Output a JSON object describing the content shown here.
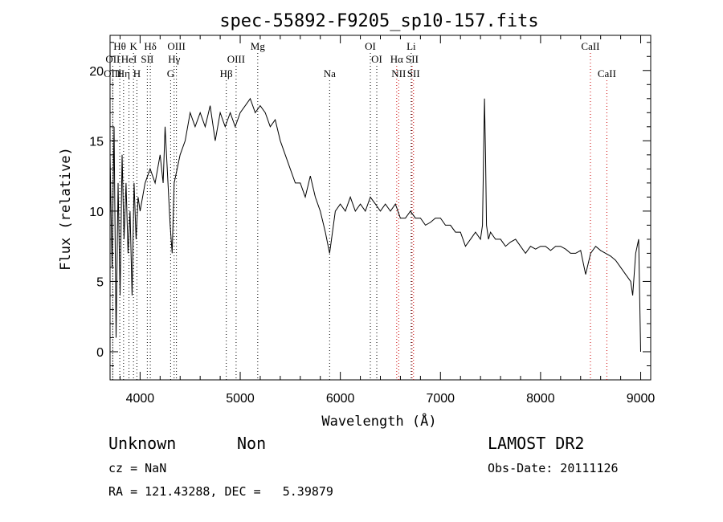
{
  "title": "spec-55892-F9205_sp10-157.fits",
  "chart_data": {
    "type": "line",
    "title": "spec-55892-F9205_sp10-157.fits",
    "xlabel": "Wavelength (Å)",
    "ylabel": "Flux (relative)",
    "xlim": [
      3700,
      9100
    ],
    "ylim": [
      -2,
      22.5
    ],
    "xticks": [
      4000,
      5000,
      6000,
      7000,
      8000,
      9000
    ],
    "yticks": [
      0,
      5,
      10,
      15,
      20
    ],
    "ytick_labels": [
      "0",
      "5",
      "10",
      "15",
      "20"
    ],
    "grid": false,
    "line_color": "#000000",
    "series": [
      {
        "x": [
          3700,
          3720,
          3740,
          3760,
          3780,
          3800,
          3820,
          3840,
          3860,
          3880,
          3900,
          3920,
          3940,
          3960,
          3980,
          4000,
          4050,
          4100,
          4150,
          4200,
          4230,
          4250,
          4300,
          4320,
          4340,
          4400,
          4450,
          4500,
          4550,
          4600,
          4650,
          4700,
          4750,
          4800,
          4850,
          4900,
          4950,
          5000,
          5050,
          5100,
          5150,
          5200,
          5250,
          5300,
          5350,
          5400,
          5450,
          5500,
          5550,
          5600,
          5650,
          5700,
          5750,
          5800,
          5850,
          5893,
          5950,
          6000,
          6050,
          6100,
          6150,
          6200,
          6250,
          6300,
          6350,
          6400,
          6450,
          6500,
          6550,
          6600,
          6650,
          6700,
          6750,
          6800,
          6850,
          6900,
          6950,
          7000,
          7050,
          7100,
          7150,
          7200,
          7250,
          7300,
          7350,
          7400,
          7420,
          7440,
          7450,
          7460,
          7480,
          7500,
          7550,
          7600,
          7650,
          7700,
          7750,
          7800,
          7850,
          7900,
          7950,
          8000,
          8050,
          8100,
          8150,
          8200,
          8250,
          8300,
          8350,
          8400,
          8450,
          8500,
          8550,
          8600,
          8650,
          8700,
          8750,
          8800,
          8850,
          8900,
          8920,
          8950,
          8980,
          9000
        ],
        "y": [
          14,
          6,
          16,
          1,
          12,
          4,
          14,
          8,
          12,
          7,
          10,
          4,
          12,
          8,
          11,
          10,
          12,
          13,
          12,
          14,
          12,
          16,
          9,
          7,
          12,
          14,
          15,
          17,
          16,
          17,
          16,
          17.5,
          15,
          17,
          16,
          17,
          16,
          17,
          17.5,
          18,
          17,
          17.5,
          17,
          16,
          16.5,
          15,
          14,
          13,
          12,
          12,
          11,
          12.5,
          11,
          10,
          8.5,
          7,
          10,
          10.5,
          10,
          11,
          10,
          10.5,
          10,
          11,
          10.5,
          10,
          10.5,
          10,
          10.5,
          9.5,
          9.5,
          10,
          9.5,
          9.5,
          9,
          9.2,
          9.5,
          9.5,
          9,
          9,
          8.5,
          8.5,
          7.5,
          8,
          8.5,
          8,
          9,
          18,
          14,
          9,
          8,
          8.5,
          8,
          8,
          7.5,
          7.8,
          8,
          7.5,
          7,
          7.5,
          7.3,
          7.5,
          7.5,
          7.2,
          7.5,
          7.5,
          7.3,
          7,
          7,
          7.2,
          5.5,
          7,
          7.5,
          7.2,
          7,
          6.8,
          6.5,
          6,
          5.5,
          5,
          4,
          7,
          8,
          0
        ]
      }
    ],
    "spectral_lines": [
      {
        "label": "Hθ",
        "x": 3797,
        "color": "#000000"
      },
      {
        "label": "K",
        "x": 3934,
        "color": "#000000"
      },
      {
        "label": "Hδ",
        "x": 4102,
        "color": "#000000"
      },
      {
        "label": "OIII",
        "x": 4363,
        "color": "#000000"
      },
      {
        "label": "Mg",
        "x": 5175,
        "color": "#000000"
      },
      {
        "label": "OI",
        "x": 6300,
        "color": "#000000"
      },
      {
        "label": "Li",
        "x": 6708,
        "color": "#000000"
      },
      {
        "label": "CaII",
        "x": 8498,
        "color": "#cc0000"
      },
      {
        "label": "OII",
        "x": 3727,
        "color": "#000000"
      },
      {
        "label": "HeI",
        "x": 3889,
        "color": "#000000"
      },
      {
        "label": "SII",
        "x": 4072,
        "color": "#000000"
      },
      {
        "label": "Hγ",
        "x": 4340,
        "color": "#000000"
      },
      {
        "label": "OIII",
        "x": 4959,
        "color": "#000000"
      },
      {
        "label": "OI",
        "x": 6364,
        "color": "#000000"
      },
      {
        "label": "Hα",
        "x": 6563,
        "color": "#cc0000"
      },
      {
        "label": "SII",
        "x": 6717,
        "color": "#cc0000"
      },
      {
        "label": "OIII",
        "x": 3727,
        "color": "#000000"
      },
      {
        "label": "Hη",
        "x": 3835,
        "color": "#000000"
      },
      {
        "label": "H",
        "x": 3968,
        "color": "#000000"
      },
      {
        "label": "G",
        "x": 4305,
        "color": "#000000"
      },
      {
        "label": "Hβ",
        "x": 4861,
        "color": "#000000"
      },
      {
        "label": "Na",
        "x": 5893,
        "color": "#000000"
      },
      {
        "label": "NII",
        "x": 6583,
        "color": "#cc0000"
      },
      {
        "label": "SII",
        "x": 6731,
        "color": "#cc0000"
      },
      {
        "label": "CaII",
        "x": 8662,
        "color": "#cc0000"
      }
    ]
  },
  "info": {
    "object_class": "Unknown",
    "subclass": "Non",
    "survey": "LAMOST DR2",
    "redshift": "cz = NaN",
    "obs_date": "Obs-Date: 20111126",
    "coordinates": "RA = 121.43288, DEC =   5.39879"
  }
}
